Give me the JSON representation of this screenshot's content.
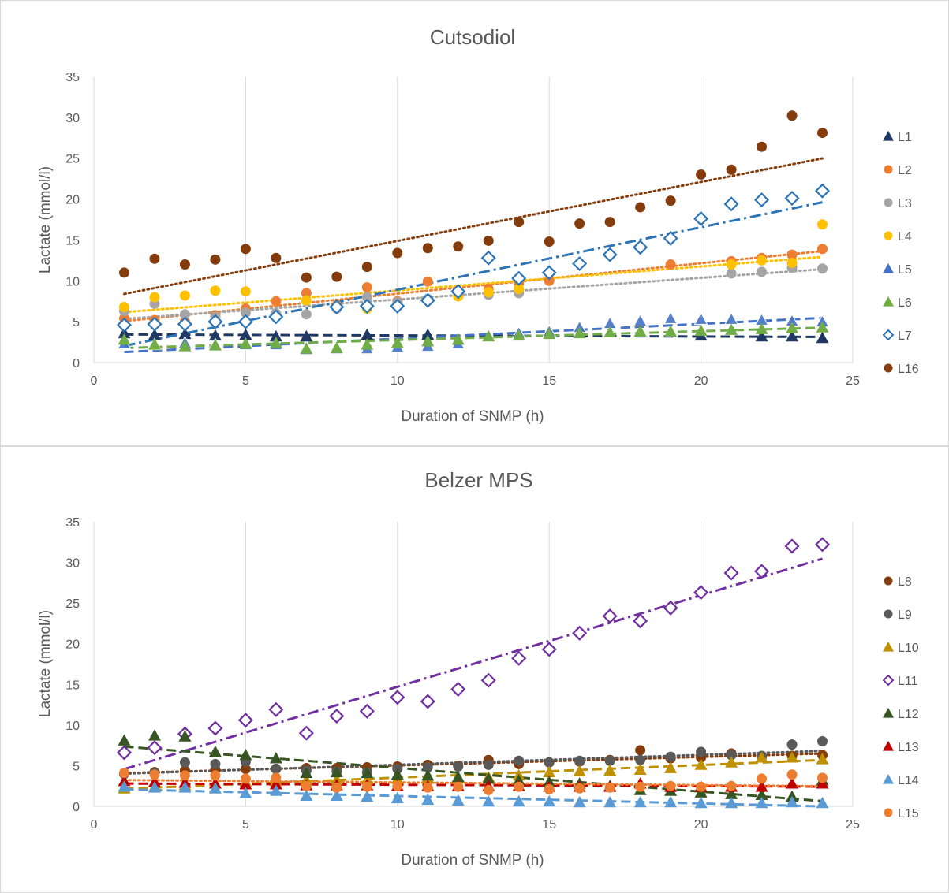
{
  "chart_data": [
    {
      "type": "scatter",
      "title": "Cutsodiol",
      "xlabel": "Duration of SNMP (h)",
      "ylabel": "Lactate (mmol/l)",
      "xlim": [
        0,
        25
      ],
      "ylim": [
        0,
        35
      ],
      "xticks": [
        "0",
        "5",
        "10",
        "15",
        "20",
        "25"
      ],
      "yticks": [
        "0",
        "5",
        "10",
        "15",
        "20",
        "25",
        "30",
        "35"
      ],
      "grid": "vertical",
      "legend": "right",
      "x": [
        1,
        2,
        3,
        4,
        5,
        6,
        7,
        8,
        9,
        10,
        11,
        12,
        13,
        14,
        15,
        16,
        17,
        18,
        19,
        20,
        21,
        22,
        23,
        24
      ],
      "series": [
        {
          "name": "L1",
          "color": "#1f3864",
          "marker": "triangle",
          "trend": "dashed",
          "values": [
            3.6,
            3.4,
            3.5,
            3.3,
            3.4,
            3.2,
            3.2,
            null,
            3.4,
            null,
            3.4,
            null,
            null,
            null,
            null,
            null,
            null,
            null,
            null,
            3.3,
            null,
            3.2,
            3.2,
            3.0
          ]
        },
        {
          "name": "L2",
          "color": "#ed7d31",
          "marker": "circle",
          "trend": "dotted",
          "values": [
            5.4,
            5.2,
            5.0,
            5.8,
            6.6,
            7.5,
            8.5,
            7.0,
            9.2,
            7.5,
            9.9,
            8.7,
            9.0,
            9.7,
            10.0,
            null,
            null,
            null,
            12.0,
            null,
            12.4,
            12.8,
            13.2,
            13.9
          ]
        },
        {
          "name": "L3",
          "color": "#a5a5a5",
          "marker": "circle",
          "trend": "dotted",
          "values": [
            6.3,
            7.2,
            5.9,
            5.6,
            6.1,
            6.0,
            5.9,
            6.6,
            8.0,
            7.4,
            7.8,
            8.2,
            8.3,
            8.5,
            null,
            null,
            null,
            null,
            null,
            null,
            10.9,
            11.1,
            11.6,
            11.5
          ]
        },
        {
          "name": "L4",
          "color": "#ffc000",
          "marker": "circle",
          "trend": "dotted",
          "values": [
            6.8,
            8.0,
            8.2,
            8.8,
            8.7,
            null,
            7.6,
            6.9,
            6.6,
            6.9,
            7.6,
            8.1,
            8.6,
            9.0,
            null,
            null,
            null,
            null,
            null,
            null,
            12.0,
            12.5,
            12.2,
            16.9
          ]
        },
        {
          "name": "L5",
          "color": "#4472c4",
          "marker": "triangle-open",
          "trend": "dashed",
          "values": [
            2.3,
            2.2,
            2.4,
            2.2,
            2.2,
            2.2,
            1.6,
            1.7,
            1.7,
            1.9,
            2.0,
            2.3,
            null,
            3.6,
            3.8,
            4.3,
            4.8,
            5.1,
            5.4,
            5.3,
            5.3,
            5.2,
            5.1,
            5.0
          ]
        },
        {
          "name": "L6",
          "color": "#70ad47",
          "marker": "triangle",
          "trend": "dashed",
          "values": [
            2.8,
            2.2,
            2.0,
            2.1,
            2.3,
            2.4,
            1.7,
            1.8,
            2.2,
            2.4,
            2.6,
            2.8,
            3.2,
            3.3,
            3.5,
            3.6,
            3.7,
            3.8,
            3.8,
            3.9,
            4.0,
            4.1,
            4.2,
            4.3
          ]
        },
        {
          "name": "L7",
          "color": "#2e75b6",
          "marker": "diamond-open",
          "trend": "dashdot",
          "values": [
            4.6,
            4.7,
            4.7,
            5.0,
            5.0,
            5.6,
            null,
            6.8,
            6.9,
            6.9,
            7.6,
            8.7,
            12.8,
            10.3,
            11.0,
            12.1,
            13.2,
            14.1,
            15.2,
            17.6,
            19.4,
            19.9,
            20.1,
            21.0
          ]
        },
        {
          "name": "L16",
          "color": "#843c0c",
          "marker": "circle",
          "trend": "dotted",
          "values": [
            11.0,
            12.7,
            12.0,
            12.6,
            13.9,
            12.8,
            10.4,
            10.5,
            11.7,
            13.4,
            14.0,
            14.2,
            14.9,
            17.2,
            14.8,
            17.0,
            17.2,
            19.0,
            19.8,
            23.0,
            23.6,
            26.4,
            30.2,
            28.1
          ]
        }
      ]
    },
    {
      "type": "scatter",
      "title": "Belzer MPS",
      "xlabel": "Duration of SNMP (h)",
      "ylabel": "Lactate (mmol/l)",
      "xlim": [
        0,
        25
      ],
      "ylim": [
        0,
        35
      ],
      "xticks": [
        "0",
        "5",
        "10",
        "15",
        "20",
        "25"
      ],
      "yticks": [
        "0",
        "5",
        "10",
        "15",
        "20",
        "25",
        "30",
        "35"
      ],
      "grid": "vertical",
      "legend": "right",
      "x": [
        1,
        2,
        3,
        4,
        5,
        6,
        7,
        8,
        9,
        10,
        11,
        12,
        13,
        14,
        15,
        16,
        17,
        18,
        19,
        20,
        21,
        22,
        23,
        24
      ],
      "series": [
        {
          "name": "L8",
          "color": "#843c0c",
          "marker": "circle",
          "trend": "dotted",
          "values": [
            4.0,
            4.2,
            4.4,
            4.5,
            4.6,
            4.6,
            4.7,
            4.7,
            4.8,
            4.9,
            5.1,
            5.0,
            5.7,
            5.2,
            5.4,
            5.5,
            5.7,
            6.9,
            5.9,
            6.0,
            6.5,
            6.1,
            6.2,
            6.3
          ]
        },
        {
          "name": "L9",
          "color": "#595959",
          "marker": "circle",
          "trend": "dotted",
          "values": [
            4.0,
            4.1,
            5.4,
            5.2,
            5.5,
            4.6,
            4.4,
            4.3,
            4.2,
            4.6,
            4.8,
            4.9,
            5.1,
            5.6,
            5.4,
            5.6,
            5.6,
            5.7,
            6.1,
            6.7,
            6.3,
            6.2,
            7.6,
            8.0
          ]
        },
        {
          "name": "L10",
          "color": "#bf9000",
          "marker": "triangle",
          "trend": "dashed",
          "values": [
            2.2,
            2.4,
            2.6,
            2.8,
            3.0,
            3.1,
            3.2,
            3.3,
            3.3,
            3.4,
            3.5,
            3.5,
            3.6,
            3.8,
            4.2,
            4.3,
            4.4,
            4.5,
            4.7,
            5.1,
            5.4,
            6.0,
            6.0,
            5.8
          ]
        },
        {
          "name": "L11",
          "color": "#7030a0",
          "marker": "diamond-open",
          "trend": "dashdot",
          "values": [
            6.6,
            7.2,
            8.9,
            9.6,
            10.6,
            11.9,
            9.0,
            11.1,
            11.7,
            13.4,
            12.9,
            14.4,
            15.5,
            18.2,
            19.3,
            21.3,
            23.4,
            22.8,
            24.4,
            26.3,
            28.7,
            28.9,
            32.0,
            32.2
          ]
        },
        {
          "name": "L12",
          "color": "#375623",
          "marker": "triangle",
          "trend": "dashed",
          "values": [
            8.1,
            8.7,
            8.6,
            6.7,
            6.3,
            5.9,
            4.1,
            4.2,
            4.1,
            3.9,
            3.8,
            3.6,
            3.4,
            3.2,
            3.0,
            2.8,
            2.5,
            2.0,
            1.9,
            1.7,
            1.5,
            1.4,
            1.2,
            3.2
          ]
        },
        {
          "name": "L13",
          "color": "#c00000",
          "marker": "triangle",
          "trend": "dashed",
          "values": [
            3.1,
            3.0,
            2.9,
            2.8,
            2.7,
            2.7,
            2.6,
            2.6,
            2.6,
            2.5,
            2.5,
            2.5,
            2.5,
            2.5,
            2.4,
            2.4,
            2.4,
            2.8,
            2.4,
            2.4,
            2.4,
            2.4,
            2.8,
            2.8
          ]
        },
        {
          "name": "L14",
          "color": "#5b9bd5",
          "marker": "triangle",
          "trend": "dashed",
          "values": [
            2.4,
            2.3,
            2.3,
            2.2,
            1.6,
            1.9,
            1.3,
            1.3,
            1.2,
            1.0,
            0.8,
            0.7,
            0.6,
            0.6,
            0.6,
            0.5,
            0.5,
            0.5,
            0.5,
            0.4,
            0.4,
            0.4,
            0.5,
            0.4
          ]
        },
        {
          "name": "L15",
          "color": "#ed7d31",
          "marker": "circle",
          "trend": "dotted",
          "values": [
            4.1,
            3.9,
            3.8,
            3.8,
            3.4,
            3.5,
            2.5,
            2.3,
            2.4,
            2.5,
            2.3,
            2.4,
            2.0,
            2.4,
            2.1,
            2.2,
            2.3,
            2.4,
            2.5,
            2.4,
            2.5,
            3.4,
            3.9,
            3.5
          ]
        }
      ]
    }
  ]
}
